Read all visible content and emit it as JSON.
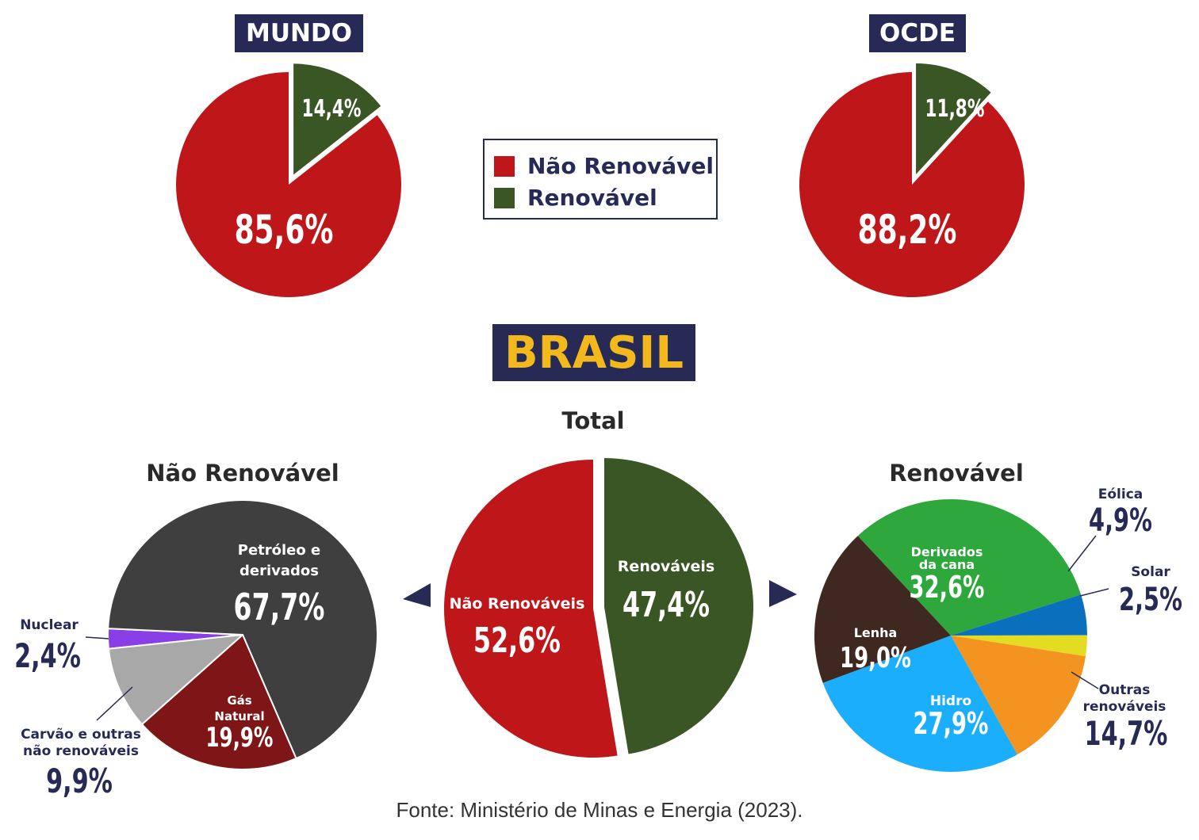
{
  "badges": {
    "mundo": "MUNDO",
    "ocde": "OCDE",
    "brasil": "BRASIL"
  },
  "legend": {
    "items": [
      {
        "label": "Não Renovável",
        "color": "#be1619"
      },
      {
        "label": "Renovável",
        "color": "#3a5624"
      }
    ]
  },
  "titles": {
    "total": "Total",
    "nao_renovavel": "Não Renovável",
    "renovavel": "Renovável"
  },
  "source": "Fonte: Ministério de Minas e Energia (2023).",
  "colors": {
    "nao_renovavel": "#be1619",
    "renovavel": "#3a5624",
    "petroleo": "#3f3f3f",
    "gas_natural": "#7e1617",
    "carvao": "#a8a8a8",
    "nuclear": "#8a3ee8",
    "derivados_cana": "#2ea83c",
    "eolica": "#0a6fbd",
    "solar": "#e3dc22",
    "outras_renovaveis": "#f39320",
    "hidro": "#1aaefc",
    "lenha": "#3f2820",
    "label_dark": "#262a55",
    "label_light": "#ffffff"
  },
  "chart_data": [
    {
      "id": "mundo",
      "type": "pie",
      "title": "MUNDO",
      "series": [
        {
          "name": "Não Renovável",
          "value": 85.6,
          "label": "85,6%"
        },
        {
          "name": "Renovável",
          "value": 14.4,
          "label": "14,4%"
        }
      ]
    },
    {
      "id": "ocde",
      "type": "pie",
      "title": "OCDE",
      "series": [
        {
          "name": "Não Renovável",
          "value": 88.2,
          "label": "88,2%"
        },
        {
          "name": "Renovável",
          "value": 11.8,
          "label": "11,8%"
        }
      ]
    },
    {
      "id": "brasil_total",
      "type": "pie",
      "title": "Total",
      "series": [
        {
          "name": "Não Renováveis",
          "value": 52.6,
          "label": "52,6%"
        },
        {
          "name": "Renováveis",
          "value": 47.4,
          "label": "47,4%"
        }
      ]
    },
    {
      "id": "brasil_nao_renovavel",
      "type": "pie",
      "title": "Não Renovável",
      "series": [
        {
          "name": "Petróleo e derivados",
          "value": 67.7,
          "label": "67,7%"
        },
        {
          "name": "Gás Natural",
          "value": 19.9,
          "label": "19,9%"
        },
        {
          "name": "Carvão e outras não renováveis",
          "value": 9.9,
          "label": "9,9%"
        },
        {
          "name": "Nuclear",
          "value": 2.4,
          "label": "2,4%"
        }
      ]
    },
    {
      "id": "brasil_renovavel",
      "type": "pie",
      "title": "Renovável",
      "series": [
        {
          "name": "Derivados da cana",
          "value": 32.6,
          "label": "32,6%"
        },
        {
          "name": "Eólica",
          "value": 4.9,
          "label": "4,9%"
        },
        {
          "name": "Solar",
          "value": 2.5,
          "label": "2,5%"
        },
        {
          "name": "Outras renováveis",
          "value": 14.7,
          "label": "14,7%"
        },
        {
          "name": "Hidro",
          "value": 27.9,
          "label": "27,9%"
        },
        {
          "name": "Lenha",
          "value": 19.0,
          "label": "19,0%"
        }
      ]
    }
  ]
}
